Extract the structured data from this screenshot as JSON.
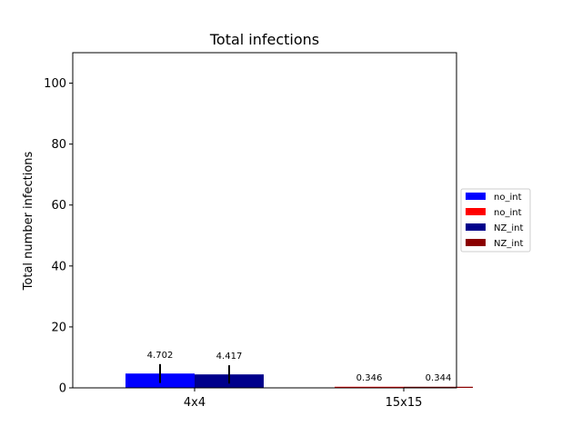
{
  "chart_data": {
    "type": "bar",
    "title": "Total infections",
    "xlabel": "",
    "ylabel": "Total number infections",
    "categories": [
      "4x4",
      "15x15"
    ],
    "ylim": [
      0,
      110
    ],
    "yticks": [
      0,
      20,
      40,
      60,
      80,
      100
    ],
    "grid": false,
    "legend_position": "right",
    "series": [
      {
        "name": "no_int",
        "color": "#0000ff",
        "values": [
          4.702,
          null
        ],
        "error": [
          3.1,
          null
        ]
      },
      {
        "name": "no_int",
        "color": "#ff0000",
        "values": [
          null,
          0.346
        ],
        "error": [
          null,
          0
        ]
      },
      {
        "name": "NZ_int",
        "color": "#00008b",
        "values": [
          4.417,
          null
        ],
        "error": [
          3.0,
          null
        ]
      },
      {
        "name": "NZ_int",
        "color": "#8b0000",
        "values": [
          null,
          0.344
        ],
        "error": [
          null,
          0
        ]
      }
    ],
    "data_labels": [
      {
        "category": "4x4",
        "text": "4.702"
      },
      {
        "category": "4x4",
        "text": "4.417"
      },
      {
        "category": "15x15",
        "text": "0.346"
      },
      {
        "category": "15x15",
        "text": "0.344"
      }
    ]
  }
}
